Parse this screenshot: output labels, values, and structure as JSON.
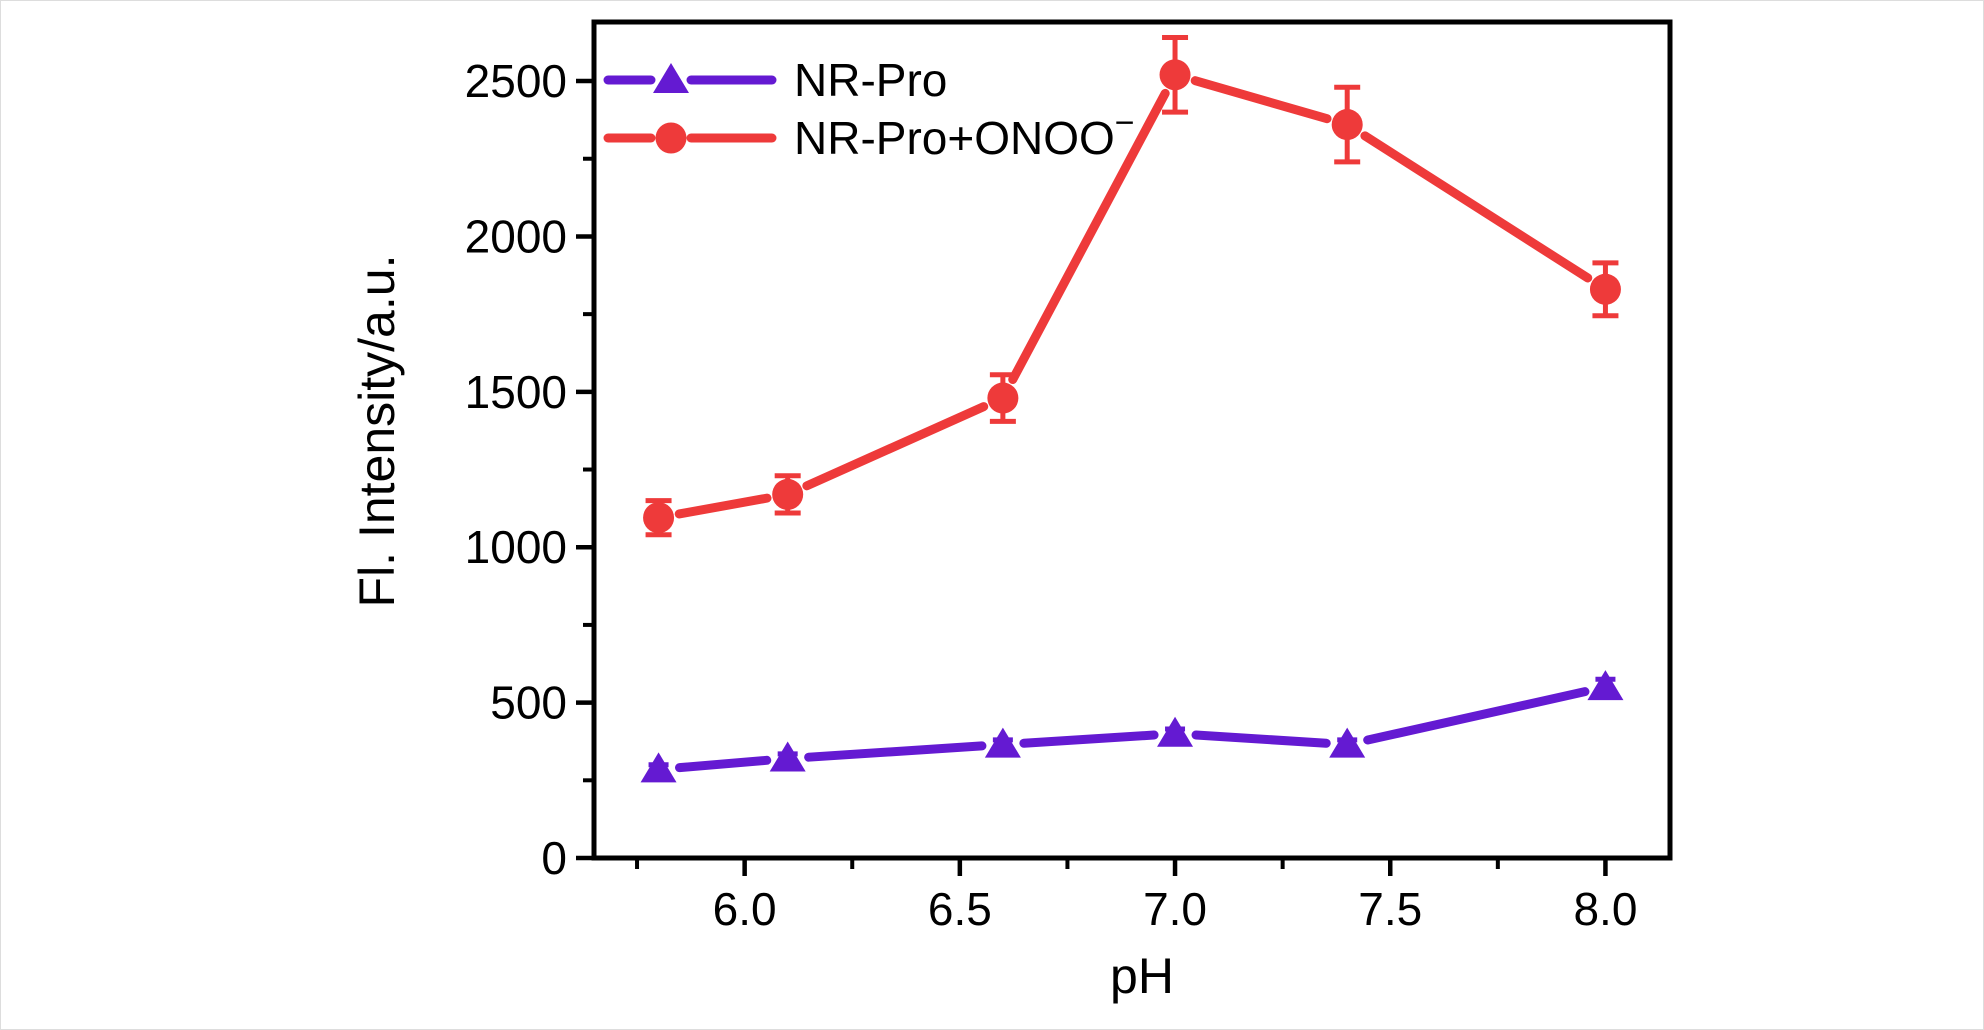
{
  "figure": {
    "background": "#ffffff",
    "axis_color": "#000000",
    "text_color": "#000000"
  },
  "chart_data": {
    "type": "line",
    "title": "",
    "xlabel": "pH",
    "ylabel": "Fl. Intensity/a.u.",
    "x": [
      5.8,
      6.1,
      6.6,
      7.0,
      7.4,
      8.0
    ],
    "series": [
      {
        "name": "NR-Pro",
        "name_superscript": "",
        "color": "#641ad2",
        "marker": "triangle",
        "line_style": "solid",
        "values": [
          285,
          320,
          365,
          400,
          365,
          550
        ],
        "errors": [
          15,
          15,
          15,
          15,
          15,
          25
        ]
      },
      {
        "name": "NR-Pro+ONOO",
        "name_superscript": "−",
        "color": "#ee3a3a",
        "marker": "circle",
        "line_style": "solid",
        "values": [
          1095,
          1170,
          1480,
          2520,
          2360,
          1830
        ],
        "errors": [
          55,
          60,
          75,
          120,
          120,
          85
        ]
      }
    ],
    "xlim": [
      5.65,
      8.15
    ],
    "ylim": [
      0,
      2690
    ],
    "x_ticks": {
      "major": [
        6.0,
        6.5,
        7.0,
        7.5,
        8.0
      ],
      "labels": [
        "6.0",
        "6.5",
        "7.0",
        "7.5",
        "8.0"
      ],
      "minor": [
        5.75,
        6.25,
        6.75,
        7.25,
        7.75
      ]
    },
    "y_ticks": {
      "major": [
        0,
        500,
        1000,
        1500,
        2000,
        2500
      ],
      "labels": [
        "0",
        "500",
        "1000",
        "1500",
        "2000",
        "2500"
      ],
      "minor": [
        250,
        750,
        1250,
        1750,
        2250
      ]
    },
    "grid": false,
    "legend_position": "inside-top-left",
    "error_bars": "vertical-with-caps"
  }
}
